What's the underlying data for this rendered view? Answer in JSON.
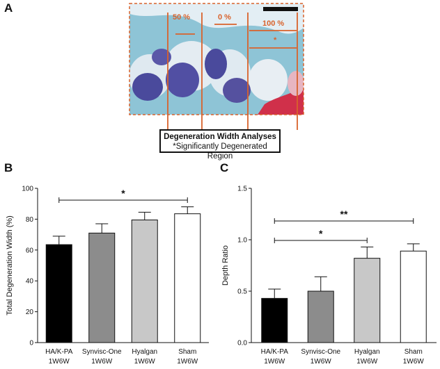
{
  "panels": {
    "a": "A",
    "b": "B",
    "c": "C"
  },
  "histology": {
    "labels": [
      "50 %",
      "0 %",
      "100 %",
      "*"
    ],
    "caption_title": "Degeneration Width Analyses",
    "caption_subtitle": "*Significantly Degenerated Region",
    "colors": {
      "stain_bg": "#8ec4d6",
      "bone": "#e8eef3",
      "nuclei": "#4a4a9c",
      "marker": "#d9622b",
      "red": "#d0304a"
    }
  },
  "chart_data": [
    {
      "type": "bar",
      "title": "",
      "categories": [
        "HA/K-PA\n1W6W",
        "Synvisc-One\n1W6W",
        "Hyalgan\n1W6W",
        "Sham\n1W6W"
      ],
      "category_lines": [
        [
          "HA/K-PA",
          "1W6W"
        ],
        [
          "Synvisc-One",
          "1W6W"
        ],
        [
          "Hyalgan",
          "1W6W"
        ],
        [
          "Sham",
          "1W6W"
        ]
      ],
      "values": [
        63.5,
        71,
        79.5,
        83.5
      ],
      "errors": [
        5.5,
        6,
        5,
        4.5
      ],
      "colors": [
        "#000000",
        "#8c8c8c",
        "#c8c8c8",
        "#ffffff"
      ],
      "xlabel": "",
      "ylabel": "Total Degeneration Width (%)",
      "ylim": [
        0,
        100
      ],
      "yticks": [
        "0",
        "20",
        "40",
        "60",
        "80",
        "100"
      ],
      "significance": [
        {
          "from": 0,
          "to": 3,
          "label": "*"
        }
      ]
    },
    {
      "type": "bar",
      "title": "",
      "categories": [
        "HA/K-PA\n1W6W",
        "Synvisc-One\n1W6W",
        "Hyalgan\n1W6W",
        "Sham\n1W6W"
      ],
      "category_lines": [
        [
          "HA/K-PA",
          "1W6W"
        ],
        [
          "Synvisc-One",
          "1W6W"
        ],
        [
          "Hyalgan",
          "1W6W"
        ],
        [
          "Sham",
          "1W6W"
        ]
      ],
      "values": [
        0.43,
        0.5,
        0.82,
        0.89
      ],
      "errors": [
        0.09,
        0.14,
        0.11,
        0.07
      ],
      "colors": [
        "#000000",
        "#8c8c8c",
        "#c8c8c8",
        "#ffffff"
      ],
      "xlabel": "",
      "ylabel": "Depth Ratio",
      "ylim": [
        0,
        1.5
      ],
      "yticks": [
        "0.0",
        "0.5",
        "1.0",
        "1.5"
      ],
      "significance": [
        {
          "from": 0,
          "to": 3,
          "label": "**"
        },
        {
          "from": 0,
          "to": 2,
          "label": "*"
        }
      ]
    }
  ]
}
